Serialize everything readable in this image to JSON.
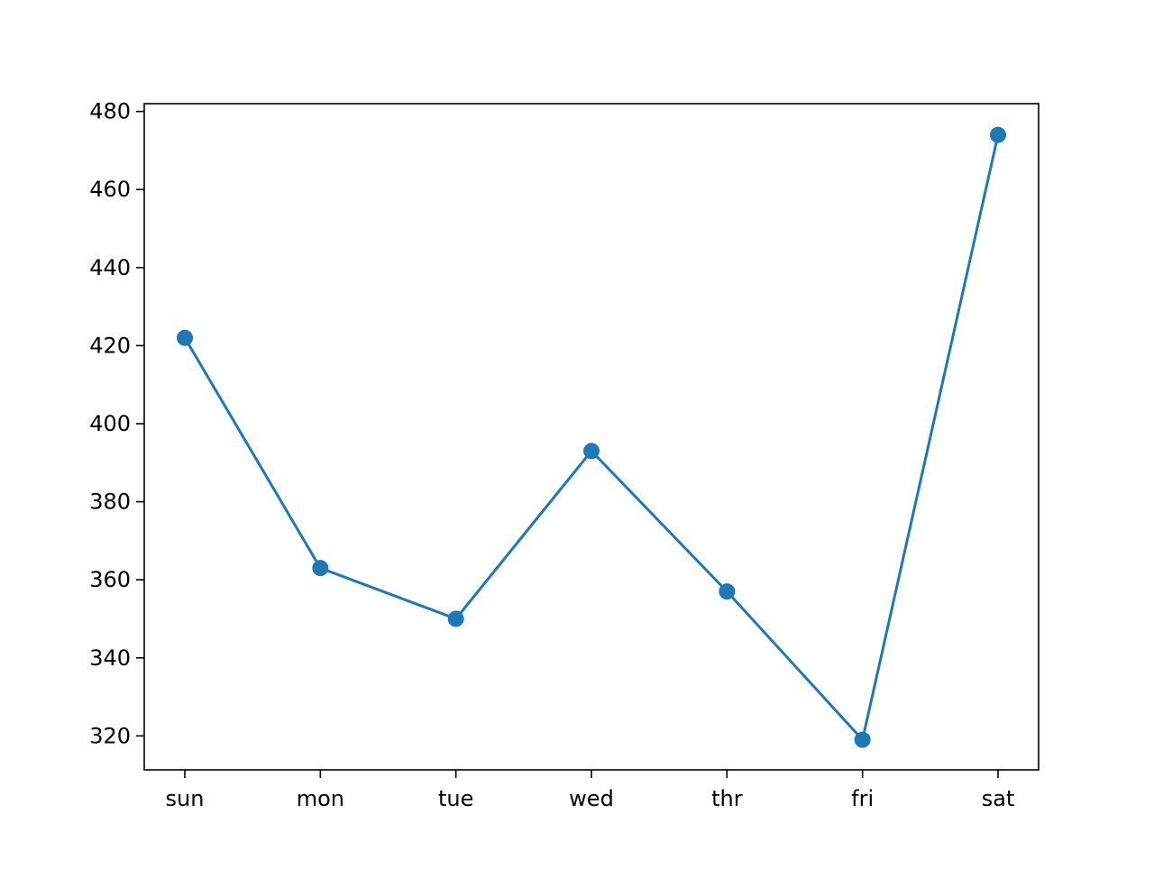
{
  "chart_data": {
    "type": "line",
    "categories": [
      "sun",
      "mon",
      "tue",
      "wed",
      "thr",
      "fri",
      "sat"
    ],
    "series": [
      {
        "values": [
          422,
          363,
          350,
          393,
          357,
          319,
          474
        ],
        "color": "#1f77b4",
        "marker": "circle"
      }
    ],
    "title": "",
    "xlabel": "",
    "ylabel": "",
    "ylim": [
      311.3,
      482
    ],
    "yticks": [
      320,
      340,
      360,
      380,
      400,
      420,
      440,
      460,
      480
    ],
    "grid": false,
    "legend": "none"
  }
}
